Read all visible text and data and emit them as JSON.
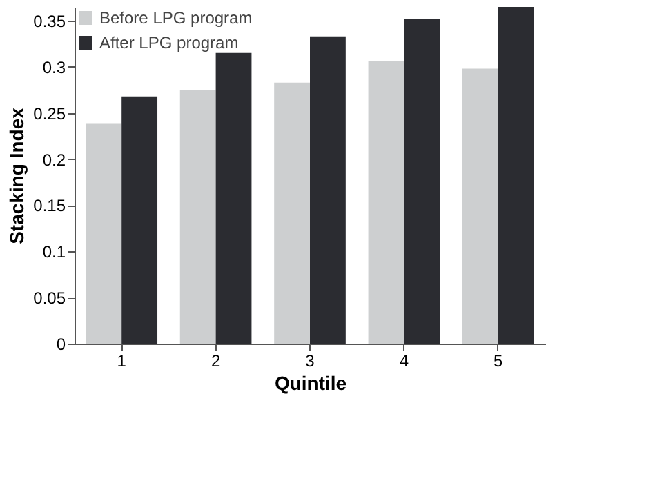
{
  "chart_data": {
    "type": "bar",
    "xlabel": "Quintile",
    "ylabel": "Stacking Index",
    "categories": [
      "1",
      "2",
      "3",
      "4",
      "5"
    ],
    "series": [
      {
        "name": "Before LPG program",
        "color": "#cdcfd0",
        "values": [
          0.239,
          0.275,
          0.283,
          0.306,
          0.298
        ]
      },
      {
        "name": "After LPG program",
        "color": "#2b2c31",
        "values": [
          0.268,
          0.315,
          0.333,
          0.352,
          0.365
        ]
      }
    ],
    "ylim": [
      0,
      0.365
    ],
    "yticks": [
      0,
      0.05,
      0.1,
      0.15,
      0.2,
      0.25,
      0.3,
      0.35
    ],
    "grid": false,
    "legend": "top left"
  }
}
